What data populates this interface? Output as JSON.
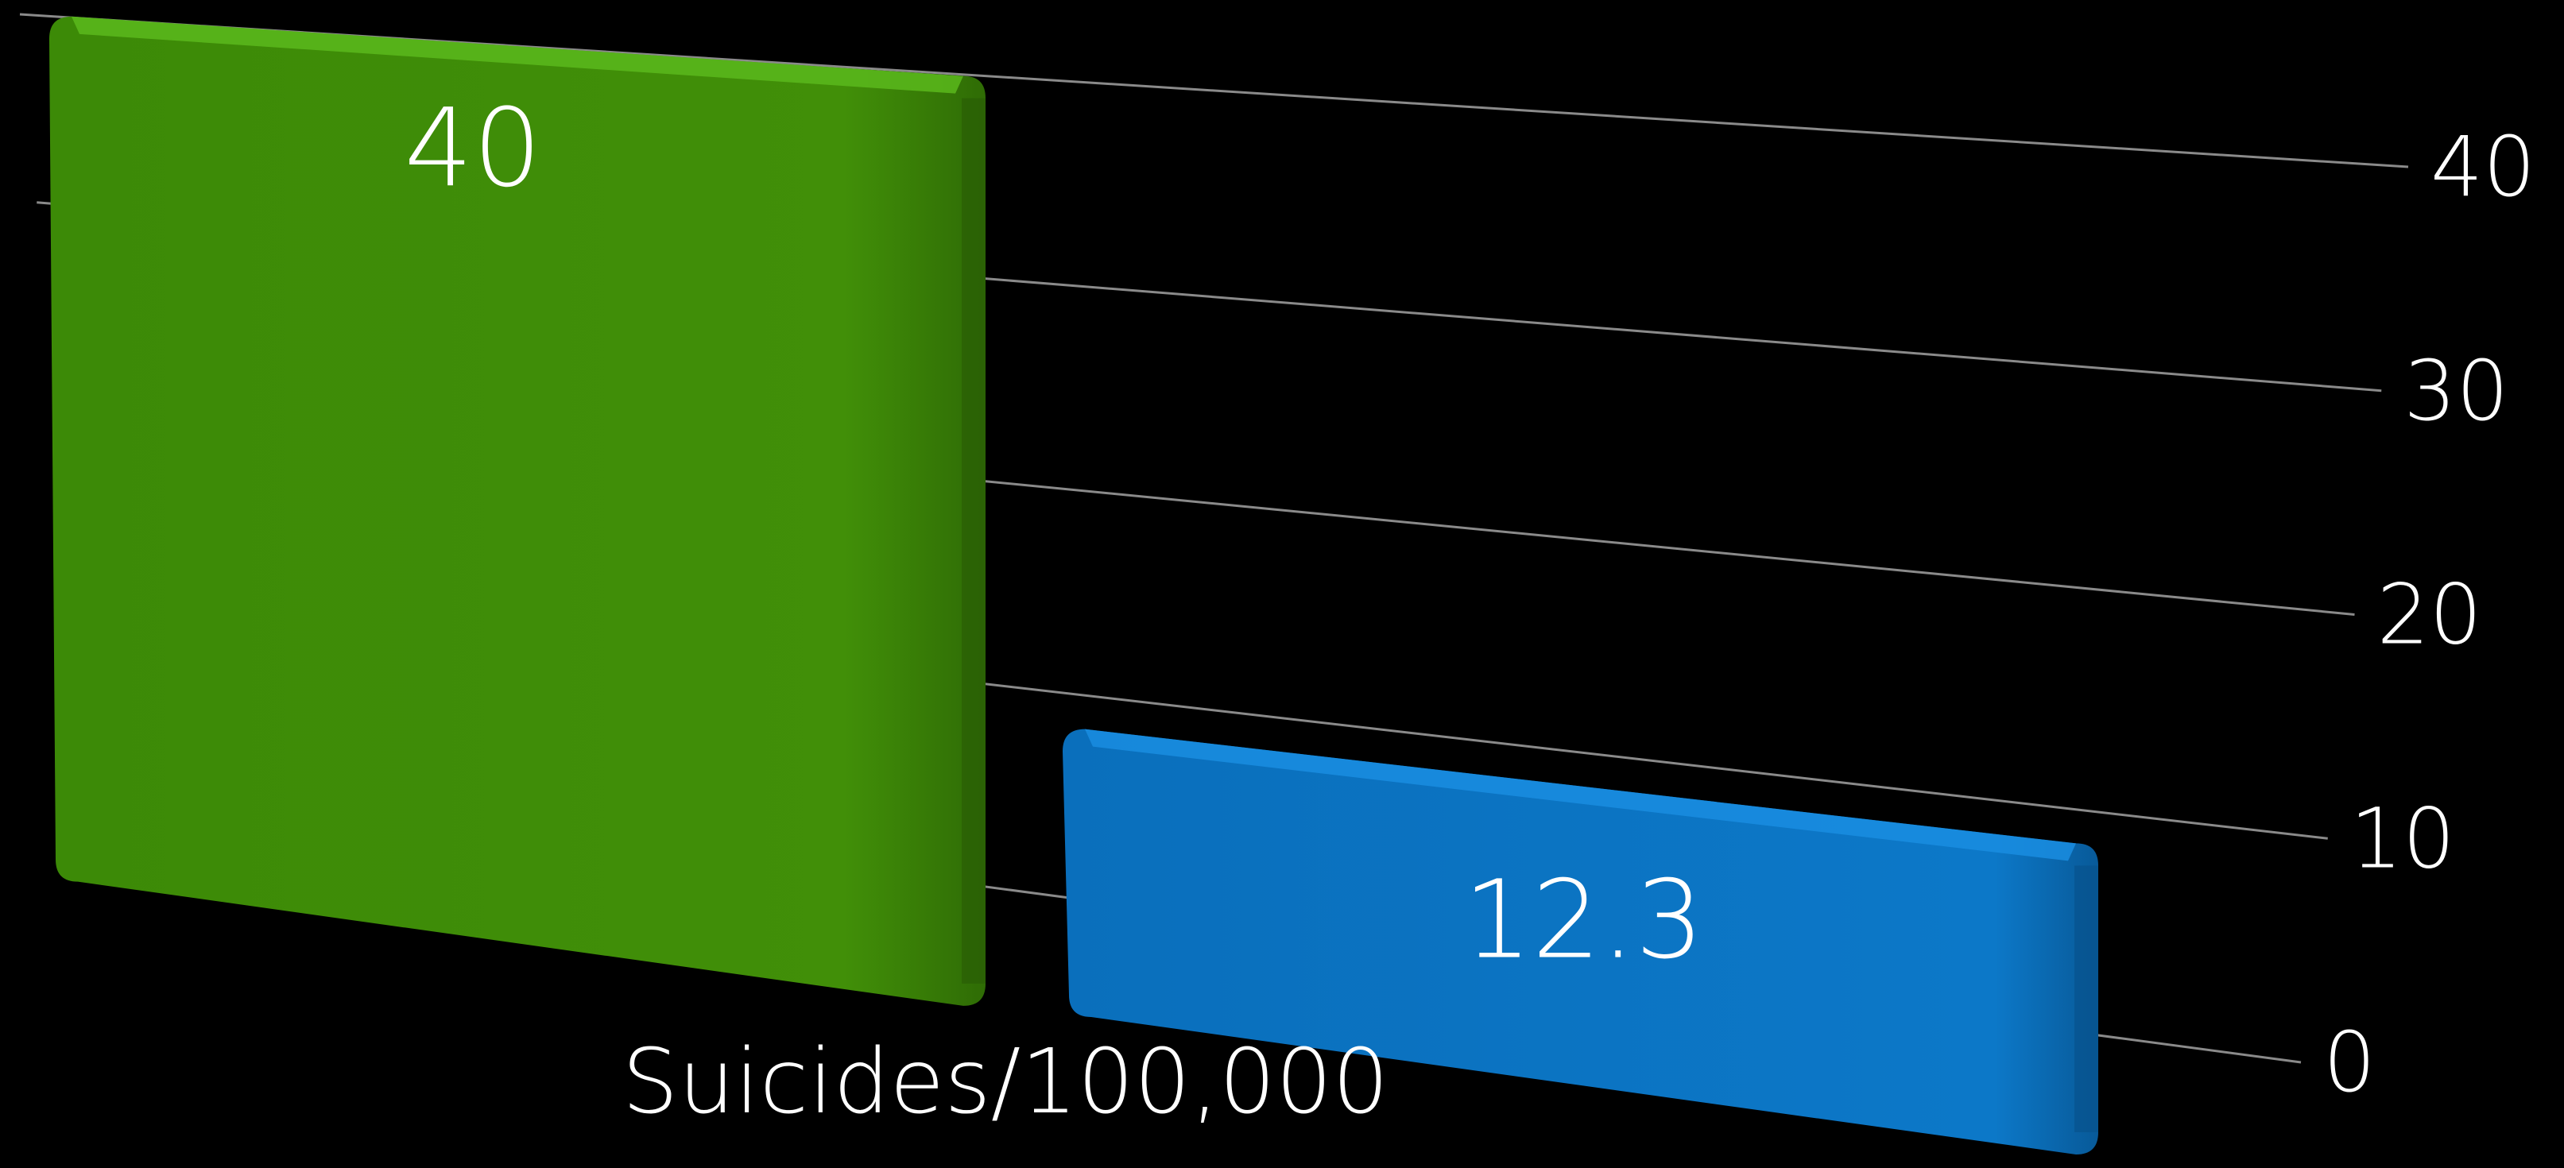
{
  "chart_data": {
    "type": "bar",
    "title": "",
    "xlabel": "Suicides/100,000",
    "ylabel": "",
    "categories": [
      "",
      ""
    ],
    "values": [
      40,
      12.3
    ],
    "data_labels": [
      "40",
      "12.3"
    ],
    "ylim": [
      0,
      40
    ],
    "yticks": [
      0,
      10,
      20,
      30,
      40
    ],
    "ytick_labels": [
      "0",
      "10",
      "20",
      "30",
      "40"
    ],
    "ytick_side": "right",
    "grid": true,
    "legend": "none",
    "colors": [
      "#3f8b0a",
      "#0b74c4"
    ]
  }
}
